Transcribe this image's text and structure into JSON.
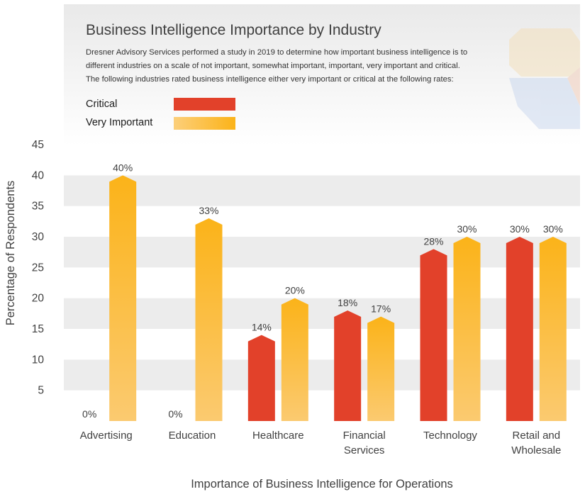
{
  "chart_data": {
    "type": "bar",
    "title": "Business Intelligence Importance by Industry",
    "description": [
      "Dresner Advisory Services performed a study in 2019 to determine how important business intelligence is to",
      "different industries on a scale of not important, somewhat important, important, very important and critical.",
      "The following industries rated business intelligence either very important or critical at the following rates:"
    ],
    "xlabel": "Importance of Business Intelligence for Operations",
    "ylabel": "Percentage of Respondents",
    "ylim": [
      0,
      45
    ],
    "yticks": [
      5,
      10,
      15,
      20,
      25,
      30,
      35,
      40,
      45
    ],
    "categories": [
      [
        "Advertising"
      ],
      [
        "Education"
      ],
      [
        "Healthcare"
      ],
      [
        "Financial",
        "Services"
      ],
      [
        "Technology"
      ],
      [
        "Retail and",
        "Wholesale"
      ]
    ],
    "series": [
      {
        "name": "Critical",
        "color": "#e2412a",
        "values": [
          0,
          0,
          14,
          18,
          28,
          30
        ],
        "labels": [
          "0%",
          "0%",
          "14%",
          "18%",
          "28%",
          "30%"
        ]
      },
      {
        "name": "Very Important",
        "color": "#fbb41e",
        "values": [
          40,
          33,
          20,
          17,
          30,
          30
        ],
        "labels": [
          "40%",
          "33%",
          "20%",
          "17%",
          "30%",
          "30%"
        ]
      }
    ],
    "legend_position": "top-left"
  },
  "colors": {
    "critical": "#e2412a",
    "very_important_top": "#fbb41e",
    "very_important_bottom": "#fbc86a",
    "band": "#ececec",
    "text": "#404040"
  }
}
